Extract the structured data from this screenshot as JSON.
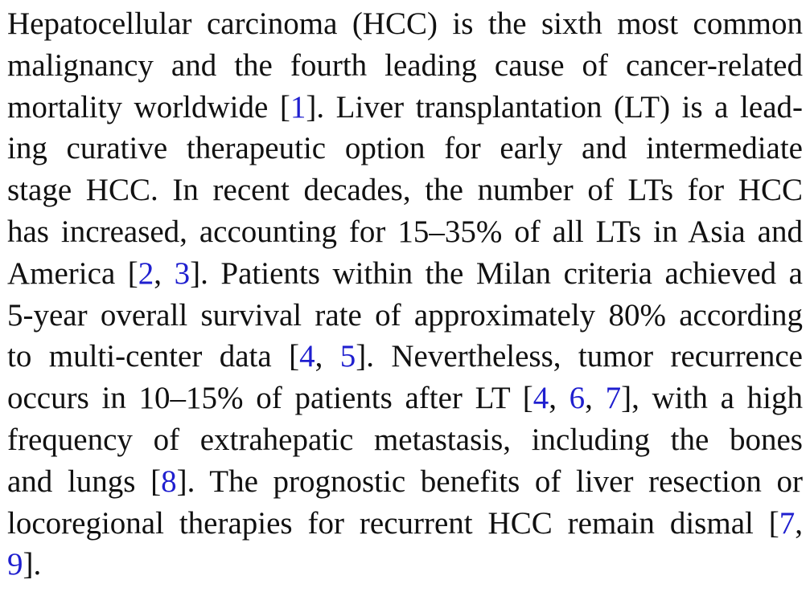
{
  "paragraph": {
    "lines": [
      [
        {
          "t": "Hepatocellular carcinoma (HCC) is the sixth most common"
        }
      ],
      [
        {
          "t": "malignancy and the fourth leading cause of cancer-related"
        }
      ],
      [
        {
          "t": "mortality worldwide ["
        },
        {
          "t": "1",
          "ref": true
        },
        {
          "t": "]. Liver transplantation (LT) is a lead-"
        }
      ],
      [
        {
          "t": "ing curative therapeutic option for early and intermediate"
        }
      ],
      [
        {
          "t": "stage HCC. In recent decades, the number of LTs for HCC"
        }
      ],
      [
        {
          "t": "has increased, accounting for 15–35% of all LTs in Asia and"
        }
      ],
      [
        {
          "t": "America ["
        },
        {
          "t": "2",
          "ref": true
        },
        {
          "t": ", "
        },
        {
          "t": "3",
          "ref": true
        },
        {
          "t": "]. Patients within the Milan criteria achieved a"
        }
      ],
      [
        {
          "t": "5-year overall survival rate of approximately 80% according"
        }
      ],
      [
        {
          "t": "to multi-center data ["
        },
        {
          "t": "4",
          "ref": true
        },
        {
          "t": ", "
        },
        {
          "t": "5",
          "ref": true
        },
        {
          "t": "]. Nevertheless, tumor recurrence"
        }
      ],
      [
        {
          "t": "occurs in 10–15% of patients after LT ["
        },
        {
          "t": "4",
          "ref": true
        },
        {
          "t": ", "
        },
        {
          "t": "6",
          "ref": true
        },
        {
          "t": ", "
        },
        {
          "t": "7",
          "ref": true
        },
        {
          "t": "], with a high"
        }
      ],
      [
        {
          "t": "frequency of extrahepatic metastasis, including the bones"
        }
      ],
      [
        {
          "t": "and lungs ["
        },
        {
          "t": "8",
          "ref": true
        },
        {
          "t": "]. The prognostic benefits of liver resection or"
        }
      ],
      [
        {
          "t": "locoregional therapies for recurrent HCC remain dismal ["
        },
        {
          "t": "7",
          "ref": true
        },
        {
          "t": ","
        }
      ],
      [
        {
          "t": "9",
          "ref": true
        },
        {
          "t": "]."
        }
      ]
    ]
  },
  "colors": {
    "text": "#111111",
    "citation_link": "#1f1fcf",
    "background": "#ffffff"
  }
}
